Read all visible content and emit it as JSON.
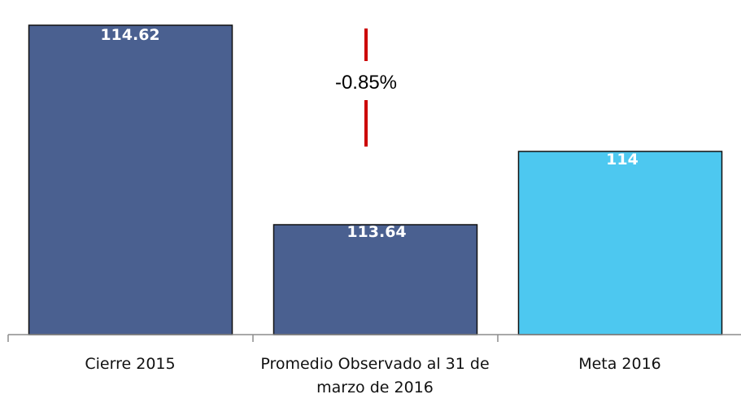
{
  "chart_data": {
    "type": "bar",
    "categories": [
      "Cierre 2015",
      "Promedio Observado al 31 de marzo de 2016",
      "Meta 2016"
    ],
    "values": [
      114.62,
      113.64,
      114
    ],
    "value_labels": [
      "114.62",
      "113.64",
      "114"
    ],
    "colors": [
      "#4a6090",
      "#4a6090",
      "#4dc8f0"
    ],
    "annotation": {
      "text": "-0.85%",
      "color": "#cc0000"
    },
    "ylim": [
      113.1,
      114.7
    ],
    "title": "",
    "xlabel": "",
    "ylabel": "",
    "grid": false,
    "legend": "none"
  }
}
